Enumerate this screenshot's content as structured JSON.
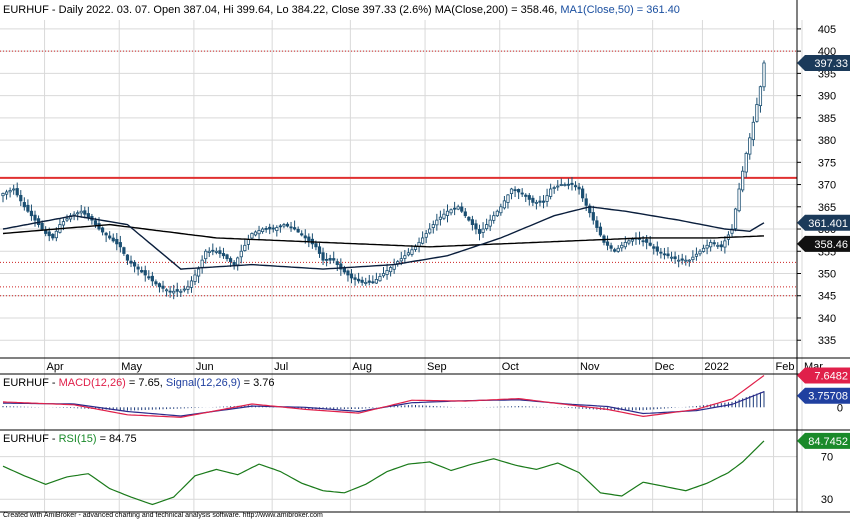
{
  "colors": {
    "background": "#ffffff",
    "grid": "#d9d9d9",
    "candle": "#1b4f72",
    "ma200": "#000000",
    "ma50": "#0a1e3c",
    "resistance": "#e03030",
    "support": "#cc2020",
    "macd": "#e0204a",
    "signal": "#2a2a8a",
    "rsi": "#1a7a1a",
    "price_tag": "#1b3a5a",
    "macd_tag": "#e0204a",
    "signal_tag": "#2040a0",
    "rsi_tag": "#1a8a2a"
  },
  "header": {
    "main_symbol": "EURHUF",
    "main_desc": " - Daily 2022. 03. 07. Open 387.04, Hi 399.64, Lo 384.22, Close 397.33 (2.6%) ",
    "ma200_label": "MA(Close,200) = 358.46,",
    "ma50_label": "MA1(Close,50) = 361.40",
    "macd_symbol": "EURHUF - ",
    "macd_label": "MACD(12,26)",
    "macd_value": " = 7.65, ",
    "signal_label": "Signal(12,26,9)",
    "signal_value": " = 3.76",
    "rsi_symbol": "EURHUF - ",
    "rsi_label": "RSI(15)",
    "rsi_value": " = 84.75"
  },
  "footer": "Created with AmiBroker - advanced charting and technical analysis software. http://www.amibroker.com",
  "tags": {
    "price": "397.33",
    "ma50": "361.401",
    "ma200": "358.46",
    "macd": "7.6482",
    "signal": "3.75708",
    "rsi": "84.7452"
  },
  "chart_data": {
    "type": "candlestick",
    "instrument": "EURHUF",
    "x_labels": [
      "Apr",
      "May",
      "Jun",
      "Jul",
      "Aug",
      "Sep",
      "Oct",
      "Nov",
      "Dec",
      "2022",
      "Feb",
      "Mar"
    ],
    "price_axis": {
      "ticks": [
        335,
        340,
        345,
        350,
        355,
        360,
        365,
        370,
        375,
        380,
        385,
        390,
        395,
        400,
        405
      ],
      "range": [
        331,
        407
      ]
    },
    "macd_axis": {
      "ticks": [
        0
      ],
      "range": [
        -4.5,
        8.5
      ]
    },
    "rsi_axis": {
      "ticks": [
        30,
        70
      ],
      "range": [
        18,
        95
      ]
    },
    "horizontal_lines": [
      {
        "value": 371.5,
        "style": "solid"
      },
      {
        "value": 400,
        "style": "dotted"
      },
      {
        "value": 352.5,
        "style": "dotted"
      },
      {
        "value": 347,
        "style": "dotted"
      },
      {
        "value": 345,
        "style": "dotted"
      }
    ],
    "close_path": [
      [
        0,
        368
      ],
      [
        3,
        369
      ],
      [
        6,
        365
      ],
      [
        9,
        362
      ],
      [
        12,
        359
      ],
      [
        14,
        358
      ],
      [
        16,
        361
      ],
      [
        19,
        363
      ],
      [
        22,
        364
      ],
      [
        25,
        362
      ],
      [
        27,
        360
      ],
      [
        30,
        358
      ],
      [
        33,
        356
      ],
      [
        35,
        353
      ],
      [
        38,
        351
      ],
      [
        41,
        349
      ],
      [
        44,
        347
      ],
      [
        47,
        346
      ],
      [
        50,
        346
      ],
      [
        52,
        347
      ],
      [
        55,
        351
      ],
      [
        57,
        355
      ],
      [
        60,
        355
      ],
      [
        62,
        354
      ],
      [
        65,
        352
      ],
      [
        67,
        355
      ],
      [
        70,
        359
      ],
      [
        73,
        360
      ],
      [
        76,
        360
      ],
      [
        79,
        361
      ],
      [
        82,
        360
      ],
      [
        85,
        358
      ],
      [
        88,
        356
      ],
      [
        90,
        353
      ],
      [
        93,
        353
      ],
      [
        95,
        351
      ],
      [
        98,
        349
      ],
      [
        101,
        348
      ],
      [
        104,
        348
      ],
      [
        107,
        350
      ],
      [
        110,
        352
      ],
      [
        113,
        354
      ],
      [
        116,
        356
      ],
      [
        119,
        359
      ],
      [
        122,
        362
      ],
      [
        125,
        364
      ],
      [
        128,
        365
      ],
      [
        131,
        362
      ],
      [
        134,
        359
      ],
      [
        137,
        362
      ],
      [
        140,
        365
      ],
      [
        143,
        369
      ],
      [
        146,
        368
      ],
      [
        149,
        366
      ],
      [
        152,
        366
      ],
      [
        154,
        369
      ],
      [
        157,
        370
      ],
      [
        160,
        370
      ],
      [
        162,
        369
      ],
      [
        163,
        367
      ],
      [
        166,
        362
      ],
      [
        169,
        357
      ],
      [
        172,
        355
      ],
      [
        175,
        357
      ],
      [
        178,
        358
      ],
      [
        181,
        357
      ],
      [
        184,
        355
      ],
      [
        187,
        354
      ],
      [
        190,
        353
      ],
      [
        193,
        353
      ],
      [
        196,
        355
      ],
      [
        199,
        357
      ],
      [
        202,
        356
      ],
      [
        205,
        360
      ],
      [
        207,
        369
      ],
      [
        209,
        377
      ],
      [
        211,
        384
      ],
      [
        213,
        392
      ],
      [
        214,
        397.33
      ]
    ],
    "ma200_path": [
      [
        0,
        359
      ],
      [
        30,
        361
      ],
      [
        60,
        358
      ],
      [
        90,
        357
      ],
      [
        120,
        356
      ],
      [
        150,
        357
      ],
      [
        180,
        358
      ],
      [
        200,
        358
      ],
      [
        214,
        358.46
      ]
    ],
    "ma50_path": [
      [
        0,
        360
      ],
      [
        20,
        363
      ],
      [
        35,
        361
      ],
      [
        50,
        351
      ],
      [
        70,
        352
      ],
      [
        90,
        351
      ],
      [
        110,
        352
      ],
      [
        125,
        354
      ],
      [
        140,
        358
      ],
      [
        155,
        363
      ],
      [
        165,
        365
      ],
      [
        175,
        364
      ],
      [
        190,
        362
      ],
      [
        203,
        360
      ],
      [
        210,
        359.5
      ],
      [
        214,
        361.4
      ]
    ],
    "macd_path": [
      [
        0,
        1.3
      ],
      [
        20,
        0.6
      ],
      [
        35,
        -1.8
      ],
      [
        50,
        -2.4
      ],
      [
        70,
        0.8
      ],
      [
        85,
        -0.5
      ],
      [
        100,
        -1.4
      ],
      [
        115,
        1.7
      ],
      [
        130,
        1.5
      ],
      [
        145,
        2.1
      ],
      [
        160,
        0.5
      ],
      [
        170,
        -0.5
      ],
      [
        180,
        -2.2
      ],
      [
        195,
        -0.5
      ],
      [
        205,
        2.0
      ],
      [
        214,
        7.65
      ]
    ],
    "signal_path": [
      [
        0,
        1.0
      ],
      [
        20,
        0.8
      ],
      [
        35,
        -1.0
      ],
      [
        50,
        -2.1
      ],
      [
        70,
        0.3
      ],
      [
        85,
        0.0
      ],
      [
        100,
        -1.0
      ],
      [
        115,
        1.1
      ],
      [
        130,
        1.6
      ],
      [
        145,
        1.8
      ],
      [
        160,
        0.7
      ],
      [
        170,
        0.2
      ],
      [
        180,
        -1.5
      ],
      [
        195,
        -0.8
      ],
      [
        205,
        0.7
      ],
      [
        214,
        3.76
      ]
    ],
    "rsi_path": [
      [
        0,
        61
      ],
      [
        6,
        52
      ],
      [
        12,
        44
      ],
      [
        18,
        51
      ],
      [
        24,
        54
      ],
      [
        30,
        40
      ],
      [
        36,
        32
      ],
      [
        42,
        25
      ],
      [
        48,
        32
      ],
      [
        54,
        52
      ],
      [
        60,
        58
      ],
      [
        66,
        53
      ],
      [
        72,
        63
      ],
      [
        78,
        56
      ],
      [
        84,
        45
      ],
      [
        90,
        38
      ],
      [
        96,
        36
      ],
      [
        102,
        44
      ],
      [
        108,
        56
      ],
      [
        114,
        63
      ],
      [
        120,
        65
      ],
      [
        126,
        57
      ],
      [
        132,
        63
      ],
      [
        138,
        68
      ],
      [
        144,
        62
      ],
      [
        150,
        58
      ],
      [
        156,
        64
      ],
      [
        162,
        55
      ],
      [
        168,
        36
      ],
      [
        174,
        33
      ],
      [
        180,
        46
      ],
      [
        186,
        42
      ],
      [
        192,
        38
      ],
      [
        198,
        45
      ],
      [
        204,
        55
      ],
      [
        208,
        65
      ],
      [
        214,
        84.75
      ]
    ]
  }
}
